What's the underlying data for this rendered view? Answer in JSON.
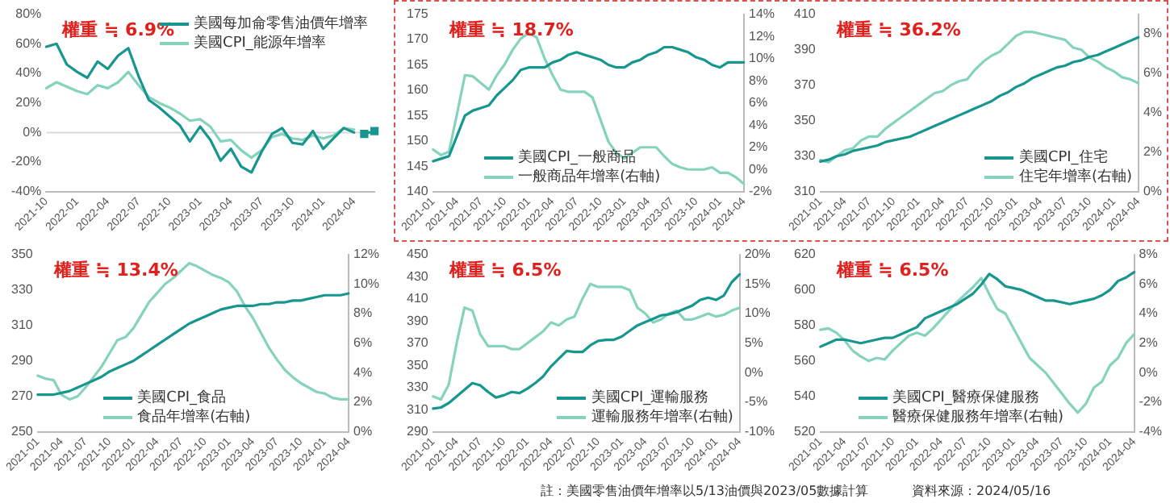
{
  "chart_data": [
    {
      "type": "line",
      "title": "權重 ≒ 6.9%",
      "marker": "none",
      "legend": "top right",
      "categories": [
        "2021-10",
        null,
        null,
        "2022-01",
        null,
        null,
        "2022-04",
        null,
        null,
        "2022-07",
        null,
        null,
        "2022-10",
        null,
        null,
        "2023-01",
        null,
        null,
        "2023-04",
        null,
        null,
        "2023-07",
        null,
        null,
        "2023-10",
        null,
        null,
        "2024-01",
        null,
        null,
        "2024-04",
        null,
        null
      ],
      "ylim": [
        -40,
        80
      ],
      "yticks": [
        {
          "value": -40,
          "label": "-40%"
        },
        {
          "value": -20,
          "label": "-20%"
        },
        {
          "value": 0,
          "label": "0%"
        },
        {
          "value": 20,
          "label": "20%"
        },
        {
          "value": 40,
          "label": "40%"
        },
        {
          "value": 60,
          "label": "60%"
        },
        {
          "value": 80,
          "label": "80%"
        }
      ],
      "ref_lines": [
        {
          "axis": "y",
          "value": 0,
          "label": null,
          "color": "#d9d9d9"
        }
      ],
      "series": [
        {
          "name": "美國每加侖零售油價年增率",
          "color": "#17968f",
          "values": [
            58,
            60,
            46,
            41,
            37,
            48,
            43,
            52,
            57,
            38,
            22,
            17,
            11,
            5,
            -6,
            4,
            -5,
            -19,
            -11,
            -23,
            -27,
            -13,
            -1,
            3,
            -7,
            -8,
            1,
            -11,
            -4,
            3,
            0,
            null,
            null
          ]
        },
        {
          "name": "美國CPI_能源年增率",
          "color": "#86d3bd",
          "values": [
            30,
            34,
            31,
            28,
            26,
            32,
            30,
            34,
            41,
            32,
            24,
            20,
            17,
            13,
            8,
            9,
            4,
            -6,
            -5,
            -12,
            -17,
            -12,
            -3,
            -1,
            -4,
            -5,
            -2,
            -4,
            -2,
            3,
            2,
            null,
            null
          ]
        },
        {
          "color": "#17968f",
          "marker": "square",
          "values": [
            null,
            null,
            null,
            null,
            null,
            null,
            null,
            null,
            null,
            null,
            null,
            null,
            null,
            null,
            null,
            null,
            null,
            null,
            null,
            null,
            null,
            null,
            null,
            null,
            null,
            null,
            null,
            null,
            null,
            null,
            null,
            -1,
            1
          ]
        }
      ]
    },
    {
      "type": "line",
      "title": "權重 ≒ 18.7%",
      "marker": "none",
      "legend": "bottom",
      "categories": [
        "2021-01",
        null,
        null,
        "2021-04",
        null,
        null,
        "2021-07",
        null,
        null,
        "2021-10",
        null,
        null,
        "2022-01",
        null,
        null,
        "2022-04",
        null,
        null,
        "2022-07",
        null,
        null,
        "2022-10",
        null,
        null,
        "2023-01",
        null,
        null,
        "2023-04",
        null,
        null,
        "2023-07",
        null,
        null,
        "2023-10",
        null,
        null,
        "2024-01",
        null,
        null,
        "2024-04"
      ],
      "ylim": [
        140,
        175
      ],
      "yticks": [
        140,
        145,
        150,
        155,
        160,
        165,
        170,
        175
      ],
      "y2lim": [
        -2,
        14
      ],
      "y2ticks": [
        {
          "value": -2,
          "label": "-2%"
        },
        {
          "value": 0,
          "label": "0%"
        },
        {
          "value": 2,
          "label": "2%"
        },
        {
          "value": 4,
          "label": "4%"
        },
        {
          "value": 6,
          "label": "6%"
        },
        {
          "value": 8,
          "label": "8%"
        },
        {
          "value": 10,
          "label": "10%"
        },
        {
          "value": 12,
          "label": "12%"
        },
        {
          "value": 14,
          "label": "14%"
        }
      ],
      "series": [
        {
          "name": "美國CPI_一般商品",
          "color": "#17968f",
          "values": [
            146,
            146.5,
            147,
            151,
            155,
            156,
            156.5,
            157,
            159,
            160.5,
            162,
            164,
            164.5,
            164.5,
            164.5,
            165.5,
            166,
            167,
            167.5,
            167,
            166.5,
            166,
            165,
            164.5,
            164.5,
            165.5,
            166,
            167,
            167.5,
            168.5,
            168.5,
            168,
            167.5,
            166.5,
            166,
            165,
            164.5,
            165.5,
            165.5,
            165.5
          ]
        },
        {
          "name": "一般商品年增率(右軸)",
          "color": "#86d3bd",
          "axis": "y2",
          "values": [
            1.8,
            1.3,
            1.6,
            5,
            8.5,
            8.4,
            7.8,
            7.2,
            8.5,
            9.5,
            10.8,
            11.8,
            12.3,
            11.9,
            10,
            8.5,
            7.2,
            7,
            7,
            7,
            6.5,
            4.5,
            2.5,
            1.5,
            1,
            1.5,
            2,
            2,
            2,
            1.2,
            0.5,
            0.2,
            0,
            0,
            0,
            0.2,
            -0.3,
            -0.3,
            -0.7,
            -1.3
          ]
        }
      ]
    },
    {
      "type": "line",
      "title": "權重 ≒ 36.2%",
      "marker": "none",
      "legend": "bottom right",
      "categories": [
        "2021-01",
        null,
        null,
        "2021-04",
        null,
        null,
        "2021-07",
        null,
        null,
        "2021-10",
        null,
        null,
        "2022-01",
        null,
        null,
        "2022-04",
        null,
        null,
        "2022-07",
        null,
        null,
        "2022-10",
        null,
        null,
        "2023-01",
        null,
        null,
        "2023-04",
        null,
        null,
        "2023-07",
        null,
        null,
        "2023-10",
        null,
        null,
        "2024-01",
        null,
        null,
        "2024-04"
      ],
      "ylim": [
        310,
        410
      ],
      "yticks": [
        310,
        330,
        350,
        370,
        390,
        410
      ],
      "y2lim": [
        0,
        9
      ],
      "y2ticks": [
        {
          "value": 0,
          "label": "0%"
        },
        {
          "value": 2,
          "label": "2%"
        },
        {
          "value": 4,
          "label": "4%"
        },
        {
          "value": 6,
          "label": "6%"
        },
        {
          "value": 8,
          "label": "8%"
        }
      ],
      "series": [
        {
          "name": "美國CPI_住宅",
          "color": "#17968f",
          "values": [
            327,
            328,
            330,
            331,
            333,
            334,
            335,
            336,
            338,
            339,
            340,
            341,
            343,
            345,
            347,
            349,
            351,
            353,
            355,
            357,
            359,
            361,
            364,
            366,
            369,
            371,
            374,
            376,
            378,
            380,
            381,
            383,
            384,
            386,
            387,
            389,
            391,
            393,
            395,
            397
          ]
        },
        {
          "name": "住宅年增率(右軸)",
          "color": "#86d3bd",
          "axis": "y2",
          "values": [
            1.6,
            1.5,
            1.8,
            2.1,
            2.2,
            2.6,
            2.8,
            2.8,
            3.2,
            3.5,
            3.8,
            4.1,
            4.4,
            4.7,
            5,
            5.1,
            5.4,
            5.6,
            5.7,
            6.2,
            6.6,
            6.9,
            7.1,
            7.5,
            7.9,
            8.1,
            8.1,
            8,
            7.9,
            7.8,
            7.7,
            7.3,
            7.2,
            6.8,
            6.6,
            6.3,
            6.1,
            5.8,
            5.7,
            5.5
          ]
        }
      ]
    },
    {
      "type": "line",
      "title": "權重 ≒ 13.4%",
      "marker": "none",
      "legend": "bottom",
      "categories": [
        "2021-01",
        null,
        null,
        "2021-04",
        null,
        null,
        "2021-07",
        null,
        null,
        "2021-10",
        null,
        null,
        "2022-01",
        null,
        null,
        "2022-04",
        null,
        null,
        "2022-07",
        null,
        null,
        "2022-10",
        null,
        null,
        "2023-01",
        null,
        null,
        "2023-04",
        null,
        null,
        "2023-07",
        null,
        null,
        "2023-10",
        null,
        null,
        "2024-01",
        null,
        null,
        "2024-04"
      ],
      "ylim": [
        250,
        350
      ],
      "yticks": [
        250,
        270,
        290,
        310,
        330,
        350
      ],
      "y2lim": [
        0,
        12
      ],
      "y2ticks": [
        {
          "value": 0,
          "label": "0%"
        },
        {
          "value": 2,
          "label": "2%"
        },
        {
          "value": 4,
          "label": "4%"
        },
        {
          "value": 6,
          "label": "6%"
        },
        {
          "value": 8,
          "label": "8%"
        },
        {
          "value": 10,
          "label": "10%"
        },
        {
          "value": 12,
          "label": "12%"
        }
      ],
      "series": [
        {
          "name": "美國CPI_食品",
          "color": "#17968f",
          "values": [
            271,
            271,
            271,
            272,
            273,
            275,
            277,
            279,
            281,
            284,
            286,
            288,
            290,
            293,
            296,
            299,
            302,
            305,
            308,
            311,
            313,
            315,
            317,
            319,
            320,
            321,
            321,
            321,
            322,
            322,
            323,
            323,
            324,
            324,
            325,
            326,
            327,
            327,
            327,
            328
          ]
        },
        {
          "name": "食品年增率(右軸)",
          "color": "#86d3bd",
          "axis": "y2",
          "values": [
            3.8,
            3.6,
            3.5,
            2.5,
            2.2,
            2.4,
            3,
            3.7,
            4.4,
            5.3,
            6.2,
            6.4,
            7,
            7.9,
            8.8,
            9.4,
            10,
            10.4,
            10.9,
            11.4,
            11.2,
            10.9,
            10.6,
            10.4,
            10.1,
            9.5,
            8.5,
            7.7,
            6.7,
            5.7,
            4.9,
            4.2,
            3.7,
            3.3,
            3,
            2.7,
            2.6,
            2.3,
            2.2,
            2.2
          ]
        }
      ]
    },
    {
      "type": "line",
      "title": "權重 ≒ 6.5%",
      "marker": "none",
      "legend": "bottom right",
      "categories": [
        "2021-01",
        null,
        null,
        "2021-04",
        null,
        null,
        "2021-07",
        null,
        null,
        "2021-10",
        null,
        null,
        "2022-01",
        null,
        null,
        "2022-04",
        null,
        null,
        "2022-07",
        null,
        null,
        "2022-10",
        null,
        null,
        "2023-01",
        null,
        null,
        "2023-04",
        null,
        null,
        "2023-07",
        null,
        null,
        "2023-10",
        null,
        null,
        "2024-01",
        null,
        null,
        "2024-04"
      ],
      "ylim": [
        290,
        450
      ],
      "yticks": [
        290,
        310,
        330,
        350,
        370,
        390,
        410,
        430,
        450
      ],
      "y2lim": [
        -10,
        20
      ],
      "y2ticks": [
        {
          "value": -10,
          "label": "-10%"
        },
        {
          "value": -5,
          "label": "-5%"
        },
        {
          "value": 0,
          "label": "0%"
        },
        {
          "value": 5,
          "label": "5%"
        },
        {
          "value": 10,
          "label": "10%"
        },
        {
          "value": 15,
          "label": "15%"
        },
        {
          "value": 20,
          "label": "20%"
        }
      ],
      "series": [
        {
          "name": "美國CPI_運輸服務",
          "color": "#17968f",
          "values": [
            311,
            312,
            316,
            322,
            328,
            334,
            332,
            326,
            321,
            323,
            326,
            325,
            329,
            334,
            340,
            349,
            356,
            363,
            362,
            362,
            368,
            372,
            373,
            373,
            376,
            381,
            386,
            389,
            392,
            395,
            396,
            398,
            401,
            404,
            409,
            411,
            409,
            413,
            425,
            432
          ]
        },
        {
          "name": "運輸服務年增率(右軸)",
          "color": "#86d3bd",
          "axis": "y2",
          "values": [
            -4,
            -4.5,
            -2,
            5,
            11,
            10.5,
            6.5,
            4.5,
            4.5,
            4.5,
            4,
            4,
            5,
            6,
            7,
            8.5,
            8,
            9,
            9.5,
            12.5,
            15,
            14.5,
            14.5,
            14.5,
            14.5,
            14,
            11,
            10,
            8.5,
            9,
            10,
            10.5,
            9,
            9,
            9.5,
            10,
            9.5,
            9.8,
            10.5,
            11
          ]
        }
      ]
    },
    {
      "type": "line",
      "title": "權重 ≒ 6.5%",
      "marker": "none",
      "legend": "bottom",
      "categories": [
        "2021-01",
        null,
        null,
        "2021-04",
        null,
        null,
        "2021-07",
        null,
        null,
        "2021-10",
        null,
        null,
        "2022-01",
        null,
        null,
        "2022-04",
        null,
        null,
        "2022-07",
        null,
        null,
        "2022-10",
        null,
        null,
        "2023-01",
        null,
        null,
        "2023-04",
        null,
        null,
        "2023-07",
        null,
        null,
        "2023-10",
        null,
        null,
        "2024-01",
        null,
        null,
        "2024-04"
      ],
      "ylim": [
        520,
        620
      ],
      "yticks": [
        520,
        540,
        560,
        580,
        600,
        620
      ],
      "y2lim": [
        -4,
        8
      ],
      "y2ticks": [
        {
          "value": -4,
          "label": "-4%"
        },
        {
          "value": -2,
          "label": "-2%"
        },
        {
          "value": 0,
          "label": "0%"
        },
        {
          "value": 2,
          "label": "2%"
        },
        {
          "value": 4,
          "label": "4%"
        },
        {
          "value": 6,
          "label": "6%"
        },
        {
          "value": 8,
          "label": "8%"
        }
      ],
      "annotations": [
        "註：美國零售油價年增率以5/13油價與2023/05數據計算",
        "資料來源：2024/05/16"
      ],
      "series": [
        {
          "name": "美國CPI_醫療保健服務",
          "color": "#17968f",
          "values": [
            568,
            570,
            572,
            572,
            571,
            570,
            571,
            572,
            573,
            573,
            575,
            577,
            579,
            584,
            586,
            588,
            590,
            592,
            595,
            598,
            603,
            609,
            606,
            602,
            601,
            600,
            598,
            596,
            594,
            594,
            593,
            592,
            593,
            594,
            595,
            597,
            600,
            605,
            607,
            610
          ]
        },
        {
          "name": "醫療保健服務年增率(右軸)",
          "color": "#86d3bd",
          "axis": "y2",
          "values": [
            2.9,
            3,
            2.7,
            2.2,
            1.5,
            1.1,
            0.8,
            1,
            0.9,
            1.5,
            2,
            2.5,
            2.7,
            2.5,
            3,
            3.6,
            4.2,
            4.8,
            5.3,
            5.8,
            6.4,
            5.3,
            4.3,
            4,
            3,
            2,
            1,
            0.5,
            0,
            -0.7,
            -1.4,
            -2.1,
            -2.7,
            -2.1,
            -1,
            -0.6,
            0.5,
            1,
            2,
            2.6
          ]
        }
      ]
    }
  ]
}
